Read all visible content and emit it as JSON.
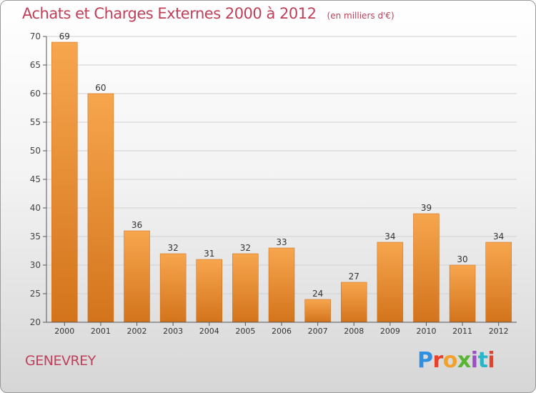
{
  "title": "Achats et Charges Externes 2000 à 2012",
  "subtitle": "(en milliers d'€)",
  "town": "GENEVREY",
  "brand": {
    "text": "Proxiti",
    "letters": [
      "P",
      "r",
      "o",
      "x",
      "i",
      "t",
      "i"
    ],
    "colors": [
      "#2f8fe0",
      "#e8402a",
      "#f2a12a",
      "#58b534",
      "#9a4fc8",
      "#2bb5c8",
      "#e8402a"
    ]
  },
  "chart_data": {
    "type": "bar",
    "title": "Achats et Charges Externes 2000 à 2012",
    "subtitle": "(en milliers d'€)",
    "xlabel": "",
    "ylabel": "",
    "categories": [
      "2000",
      "2001",
      "2002",
      "2003",
      "2004",
      "2005",
      "2006",
      "2007",
      "2008",
      "2009",
      "2010",
      "2011",
      "2012"
    ],
    "values": [
      69,
      60,
      36,
      32,
      31,
      32,
      33,
      24,
      27,
      34,
      39,
      30,
      34
    ],
    "ylim": [
      20,
      70
    ],
    "yticks": [
      20,
      25,
      30,
      35,
      40,
      45,
      50,
      55,
      60,
      65,
      70
    ],
    "grid": true,
    "legend": "none",
    "bar_color_top": "#f7a64e",
    "bar_color_bottom": "#d3741c"
  }
}
